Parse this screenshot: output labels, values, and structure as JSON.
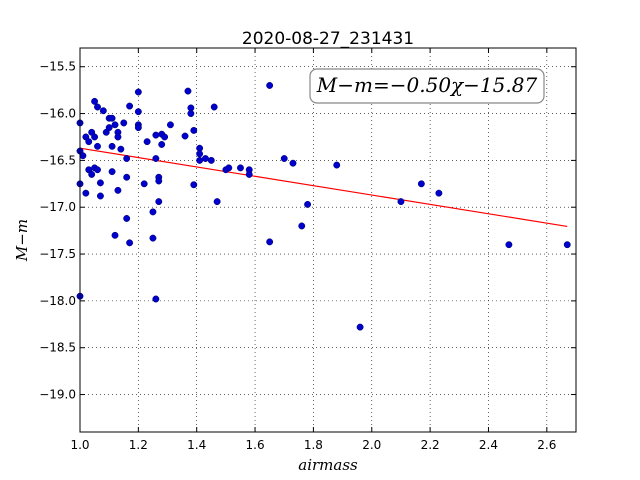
{
  "chart_data": {
    "type": "scatter",
    "title": "2020-08-27_231431",
    "xlabel": "airmass",
    "ylabel": "M−m",
    "xlim": [
      1.0,
      2.7
    ],
    "ylim": [
      -19.4,
      -15.3
    ],
    "x_ticks": [
      "1.0",
      "1.2",
      "1.4",
      "1.6",
      "1.8",
      "2.0",
      "2.2",
      "2.4",
      "2.6"
    ],
    "y_ticks": [
      "−15.5",
      "−16.0",
      "−16.5",
      "−17.0",
      "−17.5",
      "−18.0",
      "−18.5",
      "−19.0"
    ],
    "grid": true,
    "fit_label": "M−m=−0.50χ−15.87",
    "fit": {
      "slope": -0.5,
      "intercept": -15.87,
      "x_range": [
        1.0,
        2.67
      ],
      "color": "#ff0000"
    },
    "point_color": "#0000cc",
    "points": [
      [
        1.0,
        -16.1
      ],
      [
        1.0,
        -16.4
      ],
      [
        1.0,
        -16.75
      ],
      [
        1.0,
        -17.95
      ],
      [
        1.01,
        -16.45
      ],
      [
        1.02,
        -16.25
      ],
      [
        1.02,
        -16.85
      ],
      [
        1.03,
        -16.3
      ],
      [
        1.03,
        -16.6
      ],
      [
        1.04,
        -16.2
      ],
      [
        1.04,
        -16.65
      ],
      [
        1.05,
        -15.87
      ],
      [
        1.05,
        -16.25
      ],
      [
        1.05,
        -16.58
      ],
      [
        1.06,
        -15.93
      ],
      [
        1.06,
        -16.35
      ],
      [
        1.06,
        -16.6
      ],
      [
        1.07,
        -16.88
      ],
      [
        1.07,
        -16.74
      ],
      [
        1.08,
        -15.97
      ],
      [
        1.09,
        -16.2
      ],
      [
        1.1,
        -16.05
      ],
      [
        1.1,
        -16.15
      ],
      [
        1.11,
        -16.05
      ],
      [
        1.11,
        -16.35
      ],
      [
        1.11,
        -16.62
      ],
      [
        1.12,
        -16.12
      ],
      [
        1.13,
        -16.2
      ],
      [
        1.13,
        -16.25
      ],
      [
        1.13,
        -16.82
      ],
      [
        1.12,
        -17.3
      ],
      [
        1.14,
        -16.38
      ],
      [
        1.15,
        -16.1
      ],
      [
        1.16,
        -16.48
      ],
      [
        1.16,
        -16.68
      ],
      [
        1.16,
        -17.12
      ],
      [
        1.17,
        -17.38
      ],
      [
        1.17,
        -15.92
      ],
      [
        1.2,
        -15.77
      ],
      [
        1.2,
        -15.98
      ],
      [
        1.2,
        -16.12
      ],
      [
        1.2,
        -16.15
      ],
      [
        1.22,
        -16.75
      ],
      [
        1.23,
        -16.3
      ],
      [
        1.25,
        -17.05
      ],
      [
        1.25,
        -17.33
      ],
      [
        1.26,
        -16.23
      ],
      [
        1.26,
        -16.48
      ],
      [
        1.27,
        -16.68
      ],
      [
        1.27,
        -16.72
      ],
      [
        1.27,
        -16.94
      ],
      [
        1.28,
        -16.22
      ],
      [
        1.29,
        -16.25
      ],
      [
        1.28,
        -16.33
      ],
      [
        1.26,
        -17.98
      ],
      [
        1.31,
        -16.12
      ],
      [
        1.36,
        -16.24
      ],
      [
        1.37,
        -15.76
      ],
      [
        1.38,
        -15.94
      ],
      [
        1.38,
        -16.0
      ],
      [
        1.39,
        -16.18
      ],
      [
        1.39,
        -16.76
      ],
      [
        1.41,
        -16.37
      ],
      [
        1.41,
        -16.43
      ],
      [
        1.41,
        -16.5
      ],
      [
        1.43,
        -16.48
      ],
      [
        1.45,
        -16.5
      ],
      [
        1.46,
        -15.93
      ],
      [
        1.47,
        -16.94
      ],
      [
        1.5,
        -16.6
      ],
      [
        1.51,
        -16.58
      ],
      [
        1.55,
        -16.58
      ],
      [
        1.58,
        -16.6
      ],
      [
        1.58,
        -16.65
      ],
      [
        1.65,
        -15.7
      ],
      [
        1.65,
        -17.37
      ],
      [
        1.7,
        -16.48
      ],
      [
        1.73,
        -16.53
      ],
      [
        1.76,
        -17.2
      ],
      [
        1.78,
        -16.97
      ],
      [
        1.88,
        -16.55
      ],
      [
        1.96,
        -18.28
      ],
      [
        2.1,
        -16.94
      ],
      [
        2.17,
        -16.75
      ],
      [
        2.23,
        -16.85
      ],
      [
        2.47,
        -17.4
      ],
      [
        2.67,
        -17.4
      ]
    ]
  }
}
